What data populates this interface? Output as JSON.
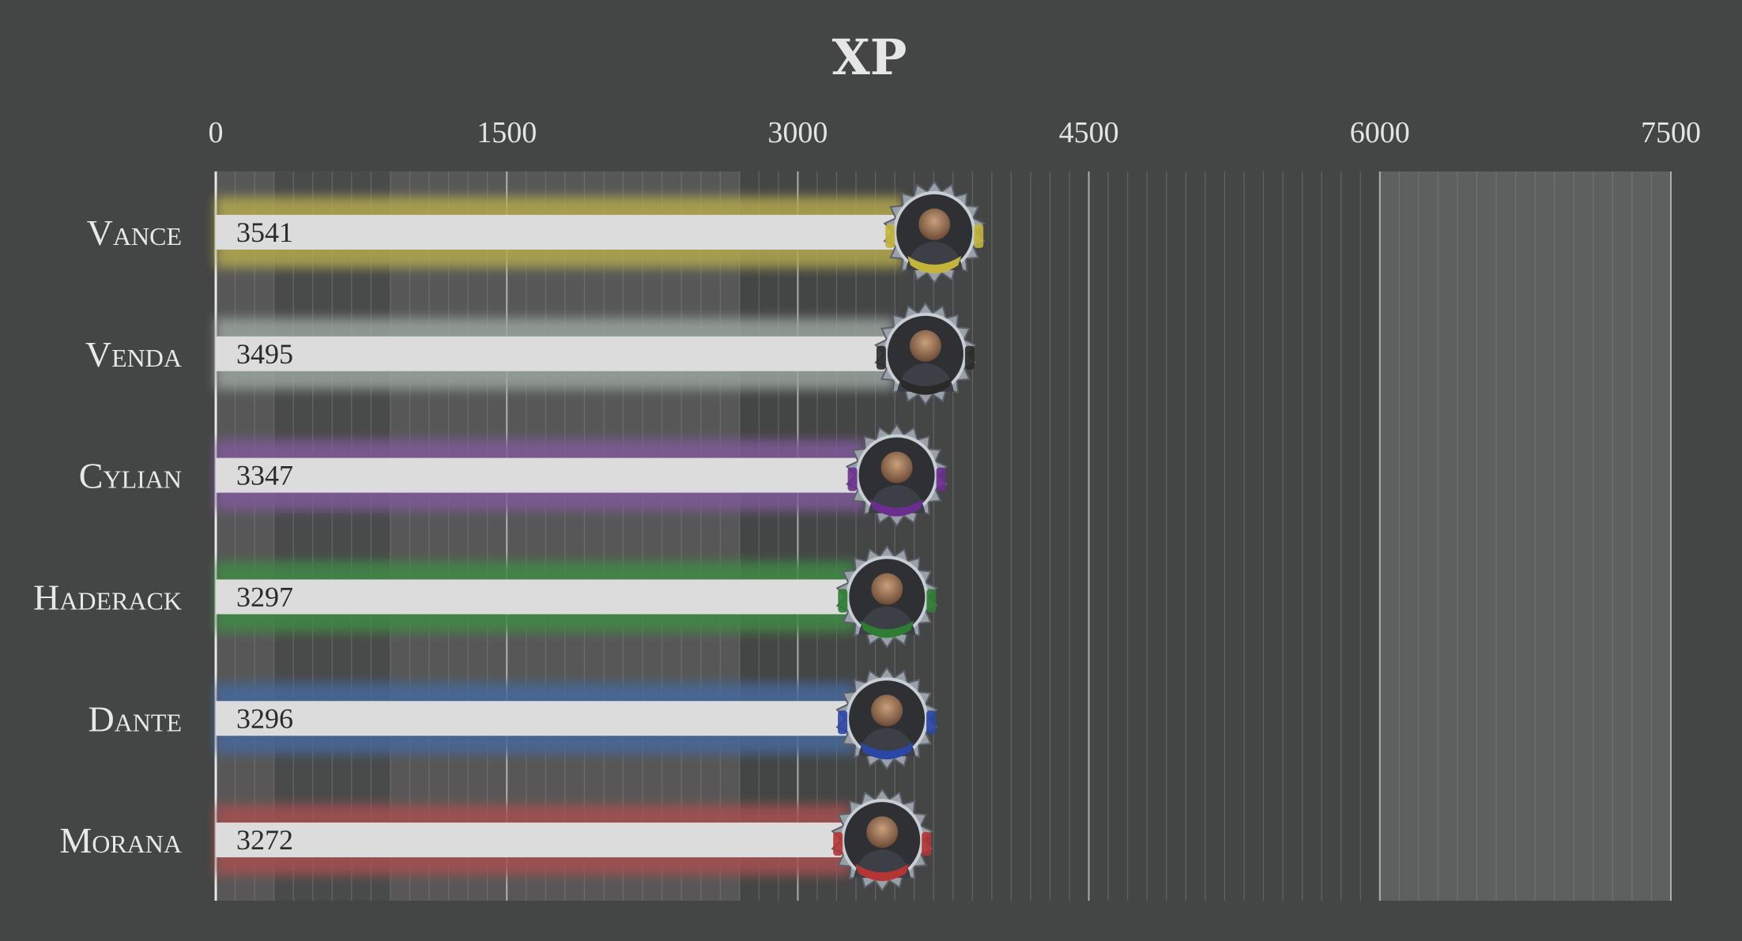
{
  "chart_data": {
    "type": "bar",
    "orientation": "horizontal",
    "title": "XP",
    "xlabel": "",
    "ylabel": "",
    "xlim": [
      0,
      7500
    ],
    "x_ticks": [
      0,
      1500,
      3000,
      4500,
      6000,
      7500
    ],
    "x_tick_labels": [
      "0",
      "1500",
      "3000",
      "4500",
      "6000",
      "7500"
    ],
    "grid": true,
    "legend": "none",
    "categories": [
      "Vance",
      "Venda",
      "Cylian",
      "Haderack",
      "Dante",
      "Morana"
    ],
    "values": [
      3541,
      3495,
      3347,
      3297,
      3296,
      3272
    ],
    "value_labels": [
      "3541",
      "3495",
      "3347",
      "3297",
      "3296",
      "3272"
    ],
    "glow_colors": [
      "#b3a84e",
      "#9aa39f",
      "#7f5a9a",
      "#3f8a47",
      "#44679b",
      "#a65050"
    ],
    "scarf_colors": [
      "#c4b43a",
      "#2a2a2a",
      "#6a2f8e",
      "#2f7d34",
      "#2b47a6",
      "#b53535"
    ],
    "bar_color": "#dcdcdc",
    "background": "#444545"
  }
}
